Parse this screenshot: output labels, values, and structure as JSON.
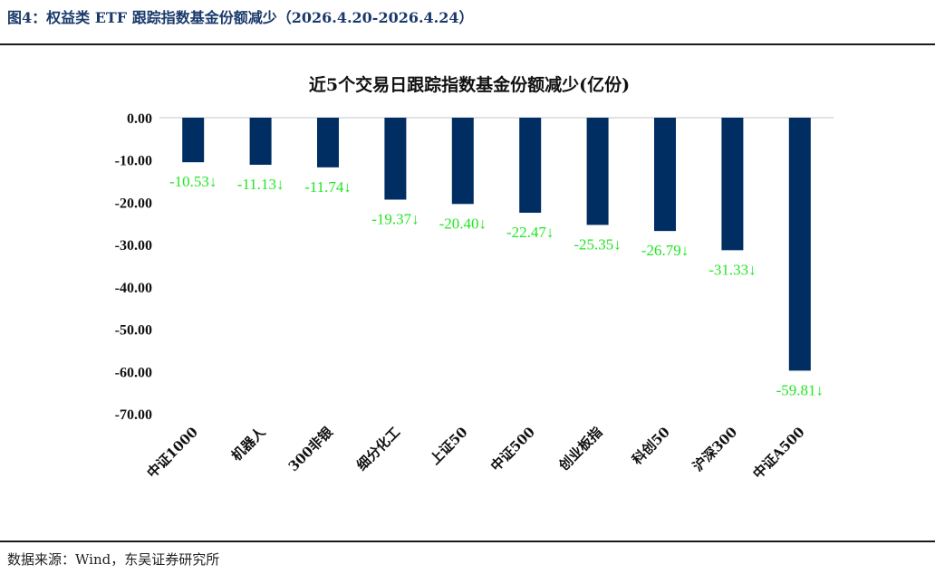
{
  "header": {
    "title": "图4：权益类 ETF 跟踪指数基金份额减少（2026.4.20-2026.4.24）"
  },
  "footer": {
    "source": "数据来源：Wind，东吴证券研究所"
  },
  "chart_data": {
    "type": "bar",
    "title": "近5个交易日跟踪指数基金份额减少(亿份)",
    "categories": [
      "中证1000",
      "机器人",
      "300非银",
      "细分化工",
      "上证50",
      "中证500",
      "创业板指",
      "科创50",
      "沪深300",
      "中证A500"
    ],
    "values": [
      -10.53,
      -11.13,
      -11.74,
      -19.37,
      -20.4,
      -22.47,
      -25.35,
      -26.79,
      -31.33,
      -59.81
    ],
    "data_labels": [
      "-10.53↓",
      "-11.13↓",
      "-11.74↓",
      "-19.37↓",
      "-20.40↓",
      "-22.47↓",
      "-25.35↓",
      "-26.79↓",
      "-31.33↓",
      "-59.81↓"
    ],
    "ylim": [
      -70,
      0
    ],
    "yticks": [
      0,
      -10,
      -20,
      -30,
      -40,
      -50,
      -60,
      -70
    ],
    "ytick_labels": [
      "0.00",
      "-10.00",
      "-20.00",
      "-30.00",
      "-40.00",
      "-50.00",
      "-60.00",
      "-70.00"
    ],
    "xlabel": "",
    "ylabel": "",
    "grid": false,
    "legend": "none",
    "colors": {
      "bar": "#002d62",
      "data_label": "#22e622",
      "axis": "#d9d9d9"
    }
  }
}
